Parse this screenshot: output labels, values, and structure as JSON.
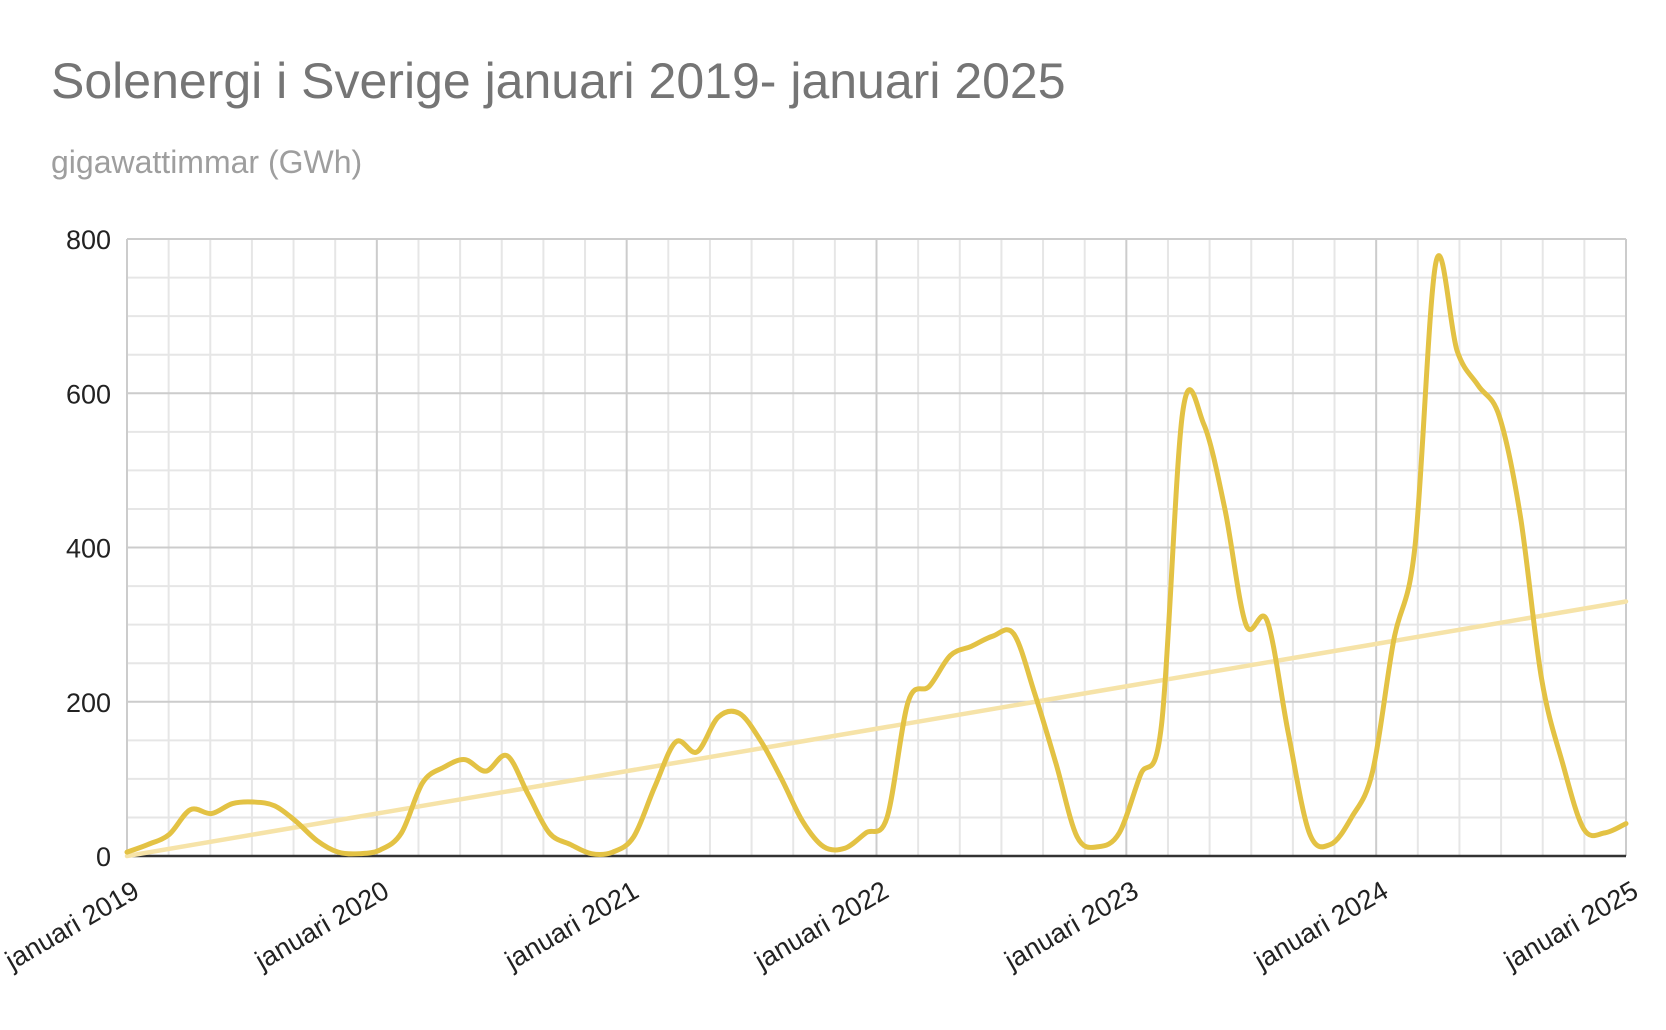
{
  "chart_data": {
    "type": "line",
    "title": "Solenergi i Sverige januari 2019- januari 2025",
    "subtitle": "gigawattimmar (GWh)",
    "xlabel": "",
    "ylabel": "",
    "ylim": [
      0,
      800
    ],
    "yticks": [
      "0",
      "200",
      "400",
      "600",
      "800"
    ],
    "xticks": [
      "januari 2019",
      "januari 2020",
      "januari 2021",
      "januari 2022",
      "januari 2023",
      "januari 2024",
      "januari 2025"
    ],
    "grid": true,
    "legend": "none",
    "x_start": "2019-01",
    "x_end": "2025-01",
    "colors": {
      "series": "#e3c244",
      "trend": "#f6e3a8",
      "grid_major": "#cccccc",
      "grid_minor": "#e6e6e6",
      "axis": "#333333"
    },
    "series": [
      {
        "values": [
          5,
          15,
          28,
          60,
          55,
          68,
          70,
          65,
          45,
          20,
          5,
          3,
          8,
          30,
          95,
          115,
          125,
          110,
          130,
          80,
          30,
          15,
          3,
          5,
          25,
          90,
          148,
          135,
          180,
          185,
          150,
          100,
          45,
          12,
          10,
          30,
          50,
          200,
          220,
          260,
          272,
          285,
          288,
          210,
          120,
          25,
          12,
          30,
          105,
          170,
          575,
          560,
          450,
          300,
          305,
          160,
          30,
          15,
          50,
          110,
          280,
          400,
          770,
          655,
          610,
          570,
          440,
          230,
          120,
          35,
          30,
          42
        ]
      }
    ],
    "trendline": {
      "start": 0,
      "end": 330
    }
  }
}
